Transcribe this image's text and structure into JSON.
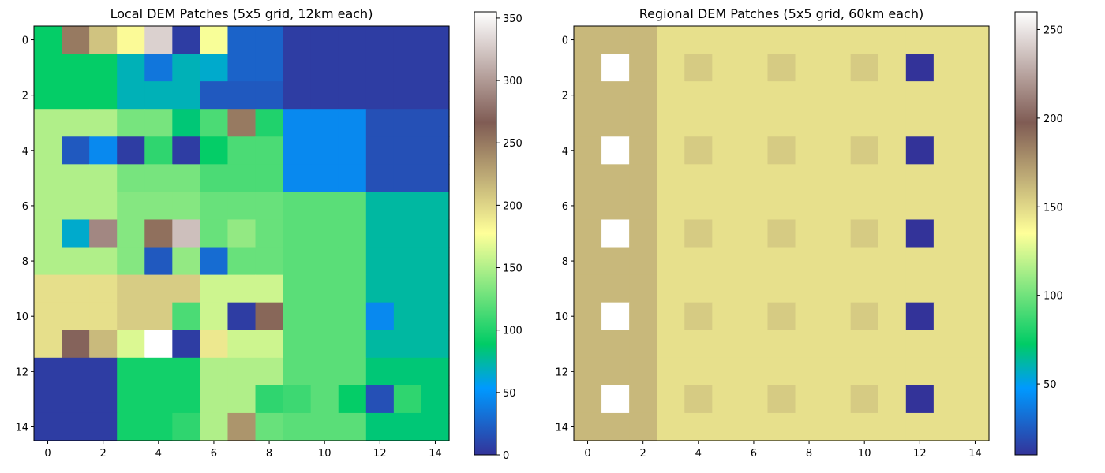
{
  "chart_data": [
    {
      "type": "heatmap",
      "title": "Local DEM Patches (5x5 grid, 12km each)",
      "colormap": "terrain",
      "vmin": 0,
      "vmax": 355,
      "x_ticks": [
        0,
        2,
        4,
        6,
        8,
        10,
        12,
        14
      ],
      "y_ticks": [
        0,
        2,
        4,
        6,
        8,
        10,
        12,
        14
      ],
      "colorbar_ticks": [
        0,
        50,
        100,
        150,
        200,
        250,
        300,
        350
      ],
      "grid": false,
      "values": [
        [
          90,
          250,
          210,
          180,
          330,
          5,
          175,
          25,
          25,
          5,
          5,
          5,
          5,
          5,
          5
        ],
        [
          90,
          90,
          90,
          70,
          35,
          70,
          65,
          25,
          25,
          5,
          5,
          5,
          5,
          5,
          5
        ],
        [
          90,
          90,
          90,
          70,
          70,
          70,
          20,
          20,
          20,
          5,
          5,
          5,
          5,
          5,
          5
        ],
        [
          150,
          150,
          150,
          130,
          130,
          85,
          115,
          250,
          100,
          45,
          45,
          45,
          15,
          15,
          15
        ],
        [
          150,
          20,
          45,
          5,
          105,
          5,
          90,
          115,
          115,
          45,
          45,
          45,
          15,
          15,
          15
        ],
        [
          150,
          150,
          150,
          130,
          130,
          130,
          115,
          115,
          115,
          45,
          45,
          45,
          15,
          15,
          15
        ],
        [
          150,
          150,
          150,
          135,
          135,
          135,
          125,
          125,
          125,
          120,
          120,
          120,
          75,
          75,
          75
        ],
        [
          150,
          65,
          290,
          135,
          255,
          320,
          125,
          140,
          125,
          120,
          120,
          120,
          75,
          75,
          75
        ],
        [
          150,
          150,
          150,
          135,
          20,
          140,
          30,
          125,
          125,
          120,
          120,
          120,
          75,
          75,
          75
        ],
        [
          195,
          195,
          195,
          205,
          205,
          205,
          160,
          160,
          160,
          120,
          120,
          120,
          75,
          75,
          75
        ],
        [
          195,
          195,
          195,
          205,
          205,
          115,
          160,
          5,
          260,
          120,
          120,
          120,
          45,
          75,
          75
        ],
        [
          195,
          270,
          215,
          165,
          355,
          5,
          190,
          160,
          160,
          120,
          120,
          120,
          75,
          75,
          75
        ],
        [
          5,
          5,
          5,
          95,
          95,
          95,
          150,
          150,
          150,
          120,
          120,
          120,
          85,
          85,
          85
        ],
        [
          5,
          5,
          5,
          95,
          95,
          95,
          150,
          150,
          105,
          110,
          120,
          90,
          15,
          105,
          85
        ],
        [
          5,
          5,
          5,
          95,
          95,
          105,
          150,
          235,
          125,
          120,
          120,
          120,
          85,
          85,
          85
        ]
      ]
    },
    {
      "type": "heatmap",
      "title": "Regional DEM Patches (5x5 grid, 60km each)",
      "colormap": "terrain",
      "vmin": 10,
      "vmax": 260,
      "x_ticks": [
        0,
        2,
        4,
        6,
        8,
        10,
        12,
        14
      ],
      "y_ticks": [
        0,
        2,
        4,
        6,
        8,
        10,
        12,
        14
      ],
      "colorbar_ticks": [
        50,
        100,
        150,
        200,
        250
      ],
      "grid": false,
      "values": [
        [
          162,
          162,
          162,
          147,
          147,
          147,
          147,
          147,
          147,
          147,
          147,
          147,
          147,
          147,
          147
        ],
        [
          162,
          260,
          162,
          147,
          155,
          147,
          147,
          155,
          147,
          147,
          155,
          147,
          10,
          147,
          147
        ],
        [
          162,
          162,
          162,
          147,
          147,
          147,
          147,
          147,
          147,
          147,
          147,
          147,
          147,
          147,
          147
        ],
        [
          162,
          162,
          162,
          147,
          147,
          147,
          147,
          147,
          147,
          147,
          147,
          147,
          147,
          147,
          147
        ],
        [
          162,
          260,
          162,
          147,
          155,
          147,
          147,
          155,
          147,
          147,
          155,
          147,
          10,
          147,
          147
        ],
        [
          162,
          162,
          162,
          147,
          147,
          147,
          147,
          147,
          147,
          147,
          147,
          147,
          147,
          147,
          147
        ],
        [
          162,
          162,
          162,
          147,
          147,
          147,
          147,
          147,
          147,
          147,
          147,
          147,
          147,
          147,
          147
        ],
        [
          162,
          260,
          162,
          147,
          155,
          147,
          147,
          155,
          147,
          147,
          155,
          147,
          10,
          147,
          147
        ],
        [
          162,
          162,
          162,
          147,
          147,
          147,
          147,
          147,
          147,
          147,
          147,
          147,
          147,
          147,
          147
        ],
        [
          162,
          162,
          162,
          147,
          147,
          147,
          147,
          147,
          147,
          147,
          147,
          147,
          147,
          147,
          147
        ],
        [
          162,
          260,
          162,
          147,
          155,
          147,
          147,
          155,
          147,
          147,
          155,
          147,
          10,
          147,
          147
        ],
        [
          162,
          162,
          162,
          147,
          147,
          147,
          147,
          147,
          147,
          147,
          147,
          147,
          147,
          147,
          147
        ],
        [
          162,
          162,
          162,
          147,
          147,
          147,
          147,
          147,
          147,
          147,
          147,
          147,
          147,
          147,
          147
        ],
        [
          162,
          260,
          162,
          147,
          155,
          147,
          147,
          155,
          147,
          147,
          155,
          147,
          10,
          147,
          147
        ],
        [
          162,
          162,
          162,
          147,
          147,
          147,
          147,
          147,
          147,
          147,
          147,
          147,
          147,
          147,
          147
        ]
      ]
    }
  ]
}
